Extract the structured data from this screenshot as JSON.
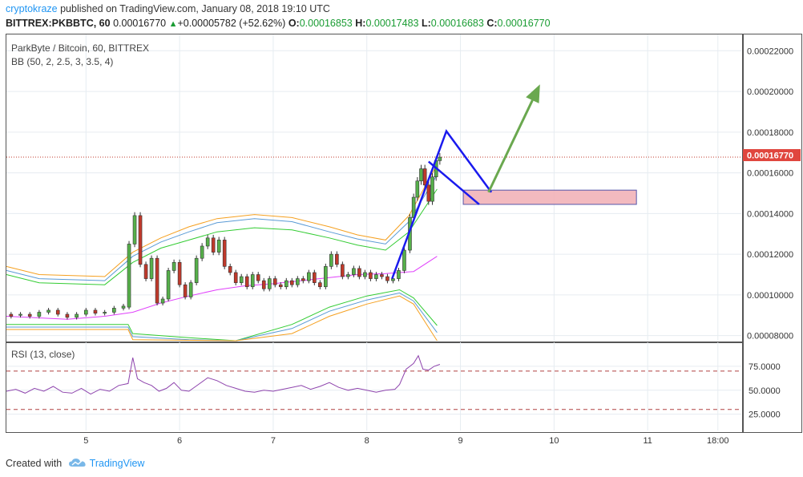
{
  "header": {
    "author": "cryptokraze",
    "published_text": "published on TradingView.com, January 08, 2018 19:10 UTC",
    "symbol": "BITTREX:PKBBTC, 60",
    "last": "0.00016770",
    "change": "+0.00005782 (+52.62%)",
    "open_label": "O:",
    "open": "0.00016853",
    "high_label": "H:",
    "high": "0.00017483",
    "low_label": "L:",
    "low": "0.00016683",
    "close_label": "C:",
    "close": "0.00016770"
  },
  "main_pane": {
    "title": "ParkByte / Bitcoin, 60, BITTREX",
    "indicator": "BB (50, 2, 2.5, 3, 3.5, 4)",
    "price_tag": "0.00016770",
    "colors": {
      "up": "#56b04a",
      "down": "#c0392b",
      "bb_mid": "#e040fb",
      "bb_inner": "#33cc33",
      "bb_mid2": "#5b9bd5",
      "bb_outer": "#f5a020",
      "pattern": "#1a1aee",
      "arrow": "#6aa84f",
      "zone_fill": "#f2b3b8",
      "zone_border": "#5555aa"
    }
  },
  "rsi_pane": {
    "title": "RSI (13, close)",
    "levels": [
      70,
      30
    ],
    "color": "#8e44ad"
  },
  "chart_data": {
    "type": "candlestick",
    "title": "ParkByte / Bitcoin, 60, BITTREX",
    "ylim": [
      7.75e-05,
      0.000228
    ],
    "y_ticks": [
      "0.00022000",
      "0.00020000",
      "0.00018000",
      "0.00016000",
      "0.00014000",
      "0.00012000",
      "0.00010000",
      "0.00008000"
    ],
    "y_tick_values": [
      0.00022,
      0.0002,
      0.00018,
      0.00016,
      0.00014,
      0.00012,
      0.0001,
      8e-05
    ],
    "x_ticks": [
      "5",
      "6",
      "7",
      "8",
      "9",
      "10",
      "11",
      "18:00"
    ],
    "x_tick_values": [
      5,
      6,
      7,
      8,
      9,
      10,
      11,
      11.75
    ],
    "xlim": [
      4.15,
      12.0
    ],
    "last_price": 0.0001677,
    "bb_mid": [
      [
        4.15,
        8.95e-05
      ],
      [
        4.8,
        8.8e-05
      ],
      [
        5.2,
        8.95e-05
      ],
      [
        5.5,
        9.15e-05
      ],
      [
        5.8,
        9.6e-05
      ],
      [
        6.1,
        9.95e-05
      ],
      [
        6.4,
        0.0001025
      ],
      [
        6.7,
        0.0001045
      ],
      [
        7.0,
        0.0001055
      ],
      [
        7.3,
        0.000107
      ],
      [
        7.6,
        0.0001085
      ],
      [
        7.9,
        0.00011
      ],
      [
        8.2,
        0.0001105
      ],
      [
        8.5,
        0.0001115
      ],
      [
        8.75,
        0.000119
      ]
    ],
    "bb_upper_inner": [
      [
        4.15,
        0.00011
      ],
      [
        4.5,
        0.000106
      ],
      [
        5.2,
        0.000105
      ],
      [
        5.5,
        0.000116
      ],
      [
        5.8,
        0.000123
      ],
      [
        6.1,
        0.000127
      ],
      [
        6.4,
        0.000131
      ],
      [
        6.8,
        0.000133
      ],
      [
        7.2,
        0.000132
      ],
      [
        7.6,
        0.000128
      ],
      [
        7.9,
        0.0001245
      ],
      [
        8.2,
        0.000122
      ],
      [
        8.45,
        0.000131
      ],
      [
        8.75,
        0.000152
      ]
    ],
    "bb_upper_mid": [
      [
        4.15,
        0.000112
      ],
      [
        4.5,
        0.000108
      ],
      [
        5.2,
        0.000107
      ],
      [
        5.5,
        0.000119
      ],
      [
        5.8,
        0.000126
      ],
      [
        6.1,
        0.000131
      ],
      [
        6.4,
        0.0001355
      ],
      [
        6.8,
        0.0001375
      ],
      [
        7.2,
        0.000136
      ],
      [
        7.6,
        0.000131
      ],
      [
        7.9,
        0.0001275
      ],
      [
        8.2,
        0.000125
      ],
      [
        8.45,
        0.000136
      ],
      [
        8.75,
        0.000159
      ]
    ],
    "bb_upper_outer": [
      [
        4.15,
        0.000114
      ],
      [
        4.5,
        0.00011
      ],
      [
        5.2,
        0.000109
      ],
      [
        5.5,
        0.000121
      ],
      [
        5.8,
        0.000128
      ],
      [
        6.1,
        0.0001335
      ],
      [
        6.4,
        0.0001375
      ],
      [
        6.8,
        0.0001395
      ],
      [
        7.2,
        0.000138
      ],
      [
        7.6,
        0.0001335
      ],
      [
        7.9,
        0.0001295
      ],
      [
        8.2,
        0.000127
      ],
      [
        8.45,
        0.000139
      ],
      [
        8.75,
        0.000164
      ]
    ],
    "bb_lower_inner": [
      [
        4.15,
        8.55e-05
      ],
      [
        5.35,
        8.55e-05
      ],
      [
        5.45,
        8.55e-05
      ],
      [
        5.5,
        8.1e-05
      ],
      [
        6.1,
        7.9e-05
      ],
      [
        6.6,
        7.75e-05
      ],
      [
        7.2,
        8.55e-05
      ],
      [
        7.6,
        9.4e-05
      ],
      [
        8.0,
        9.95e-05
      ],
      [
        8.35,
        0.0001025
      ],
      [
        8.5,
        9.85e-05
      ],
      [
        8.75,
        8.5e-05
      ]
    ],
    "bb_lower_mid": [
      [
        4.15,
        8.42e-05
      ],
      [
        5.45,
        8.42e-05
      ],
      [
        5.5,
        7.95e-05
      ],
      [
        6.1,
        7.8e-05
      ],
      [
        6.6,
        7.75e-05
      ],
      [
        7.2,
        8.35e-05
      ],
      [
        7.6,
        9.2e-05
      ],
      [
        8.0,
        9.75e-05
      ],
      [
        8.35,
        0.000101
      ],
      [
        8.5,
        9.7e-05
      ],
      [
        8.75,
        8.15e-05
      ]
    ],
    "bb_lower_outer": [
      [
        4.15,
        8.3e-05
      ],
      [
        5.45,
        8.3e-05
      ],
      [
        5.5,
        7.8e-05
      ],
      [
        6.6,
        7.75e-05
      ],
      [
        7.2,
        8.1e-05
      ],
      [
        7.6,
        8.95e-05
      ],
      [
        8.0,
        9.55e-05
      ],
      [
        8.35,
        9.95e-05
      ],
      [
        8.5,
        9.55e-05
      ],
      [
        8.75,
        7.75e-05
      ]
    ],
    "candles": [
      [
        4.2,
        9.05e-05,
        8.95e-05
      ],
      [
        4.3,
        9e-05,
        9.05e-05
      ],
      [
        4.4,
        9.05e-05,
        8.95e-05
      ],
      [
        4.5,
        8.95e-05,
        9.15e-05
      ],
      [
        4.6,
        9.15e-05,
        9.25e-05
      ],
      [
        4.7,
        9.25e-05,
        9.05e-05
      ],
      [
        4.8,
        9.05e-05,
        8.9e-05
      ],
      [
        4.9,
        8.9e-05,
        9.05e-05
      ],
      [
        5.0,
        9.05e-05,
        9.25e-05
      ],
      [
        5.1,
        9.25e-05,
        9.1e-05
      ],
      [
        5.2,
        9.1e-05,
        9.15e-05
      ],
      [
        5.3,
        9.15e-05,
        9.35e-05
      ],
      [
        5.4,
        9.35e-05,
        9.45e-05
      ],
      [
        5.46,
        9.4e-05,
        0.000125
      ],
      [
        5.52,
        0.000125,
        0.000139
      ],
      [
        5.58,
        0.000139,
        0.000115
      ],
      [
        5.64,
        0.000115,
        0.000108
      ],
      [
        5.7,
        0.000108,
        0.000118
      ],
      [
        5.76,
        0.000118,
        9.6e-05
      ],
      [
        5.82,
        9.6e-05,
        9.8e-05
      ],
      [
        5.88,
        9.8e-05,
        0.000112
      ],
      [
        5.94,
        0.000112,
        0.000116
      ],
      [
        6.0,
        0.000116,
        0.000105
      ],
      [
        6.06,
        0.000105,
        9.9e-05
      ],
      [
        6.12,
        9.9e-05,
        0.000106
      ],
      [
        6.18,
        0.000106,
        0.000118
      ],
      [
        6.24,
        0.000118,
        0.000124
      ],
      [
        6.3,
        0.000124,
        0.000128
      ],
      [
        6.36,
        0.000128,
        0.000121
      ],
      [
        6.42,
        0.000121,
        0.000127
      ],
      [
        6.48,
        0.000127,
        0.000114
      ],
      [
        6.54,
        0.000114,
        0.000111
      ],
      [
        6.6,
        0.000111,
        0.000106
      ],
      [
        6.66,
        0.000106,
        0.000109
      ],
      [
        6.72,
        0.000109,
        0.000104
      ],
      [
        6.78,
        0.000104,
        0.00011
      ],
      [
        6.84,
        0.00011,
        0.000107
      ],
      [
        6.9,
        0.000107,
        0.000103
      ],
      [
        6.96,
        0.000103,
        0.000108
      ],
      [
        7.02,
        0.000108,
        0.000105
      ],
      [
        7.08,
        0.000105,
        0.000104
      ],
      [
        7.14,
        0.000104,
        0.000107
      ],
      [
        7.2,
        0.000107,
        0.000105
      ],
      [
        7.26,
        0.000105,
        0.000108
      ],
      [
        7.32,
        0.000108,
        0.000107
      ],
      [
        7.38,
        0.000107,
        0.000111
      ],
      [
        7.44,
        0.000111,
        0.000106
      ],
      [
        7.5,
        0.000106,
        0.000104
      ],
      [
        7.56,
        0.000104,
        0.000114
      ],
      [
        7.62,
        0.000114,
        0.00012
      ],
      [
        7.68,
        0.00012,
        0.000115
      ],
      [
        7.74,
        0.000115,
        0.000109
      ],
      [
        7.8,
        0.000109,
        0.00011
      ],
      [
        7.86,
        0.00011,
        0.000113
      ],
      [
        7.92,
        0.000113,
        0.000109
      ],
      [
        7.98,
        0.000109,
        0.000111
      ],
      [
        8.04,
        0.000111,
        0.000108
      ],
      [
        8.1,
        0.000108,
        0.00011
      ],
      [
        8.16,
        0.00011,
        0.000109
      ],
      [
        8.22,
        0.000109,
        0.000107
      ],
      [
        8.28,
        0.000107,
        0.000108
      ],
      [
        8.34,
        0.000108,
        0.000112
      ],
      [
        8.4,
        0.000112,
        0.000122
      ],
      [
        8.46,
        0.000122,
        0.000138
      ],
      [
        8.5,
        0.000138,
        0.000148
      ],
      [
        8.54,
        0.000148,
        0.000156
      ],
      [
        8.58,
        0.000156,
        0.000162
      ],
      [
        8.62,
        0.000162,
        0.000154
      ],
      [
        8.66,
        0.000154,
        0.000146
      ],
      [
        8.7,
        0.000146,
        0.000158
      ],
      [
        8.74,
        0.000158,
        0.000166
      ],
      [
        8.78,
        0.000166,
        0.0001677
      ]
    ],
    "annotations": {
      "pattern_line": [
        [
          8.27,
          0.000108
        ],
        [
          8.85,
          0.0001805
        ],
        [
          9.33,
          0.0001505
        ]
      ],
      "pattern_line2": [
        [
          8.66,
          0.0001655
        ],
        [
          9.2,
          0.0001445
        ]
      ],
      "arrow": [
        [
          9.3,
          0.0001505
        ],
        [
          9.85,
          0.0002035
        ]
      ],
      "zone": {
        "x0": 9.03,
        "x1": 10.88,
        "y0": 0.0001445,
        "y1": 0.0001515
      }
    },
    "rsi": {
      "ylim": [
        8,
        100
      ],
      "y_ticks": [
        "75.0000",
        "50.0000",
        "25.0000"
      ],
      "y_tick_values": [
        75,
        50,
        25
      ],
      "levels": [
        70,
        30
      ],
      "values": [
        [
          4.15,
          49
        ],
        [
          4.25,
          51
        ],
        [
          4.35,
          47
        ],
        [
          4.45,
          52
        ],
        [
          4.55,
          49
        ],
        [
          4.65,
          54
        ],
        [
          4.75,
          48
        ],
        [
          4.85,
          47
        ],
        [
          4.95,
          52
        ],
        [
          5.05,
          46
        ],
        [
          5.15,
          51
        ],
        [
          5.25,
          49
        ],
        [
          5.35,
          55
        ],
        [
          5.45,
          57
        ],
        [
          5.5,
          84
        ],
        [
          5.55,
          62
        ],
        [
          5.62,
          58
        ],
        [
          5.7,
          55
        ],
        [
          5.78,
          49
        ],
        [
          5.86,
          52
        ],
        [
          5.94,
          58
        ],
        [
          6.02,
          50
        ],
        [
          6.1,
          49
        ],
        [
          6.2,
          56
        ],
        [
          6.3,
          63
        ],
        [
          6.4,
          60
        ],
        [
          6.5,
          55
        ],
        [
          6.6,
          52
        ],
        [
          6.7,
          49
        ],
        [
          6.8,
          48
        ],
        [
          6.9,
          50
        ],
        [
          7.0,
          49
        ],
        [
          7.1,
          51
        ],
        [
          7.2,
          53
        ],
        [
          7.3,
          55
        ],
        [
          7.4,
          51
        ],
        [
          7.5,
          54
        ],
        [
          7.6,
          58
        ],
        [
          7.7,
          53
        ],
        [
          7.8,
          50
        ],
        [
          7.9,
          52
        ],
        [
          8.0,
          50
        ],
        [
          8.1,
          48
        ],
        [
          8.2,
          50
        ],
        [
          8.3,
          51
        ],
        [
          8.35,
          56
        ],
        [
          8.42,
          72
        ],
        [
          8.5,
          78
        ],
        [
          8.55,
          86
        ],
        [
          8.6,
          72
        ],
        [
          8.66,
          71
        ],
        [
          8.72,
          75
        ],
        [
          8.78,
          77
        ]
      ]
    }
  },
  "footer": {
    "created_with": "Created with",
    "brand": "TradingView"
  }
}
